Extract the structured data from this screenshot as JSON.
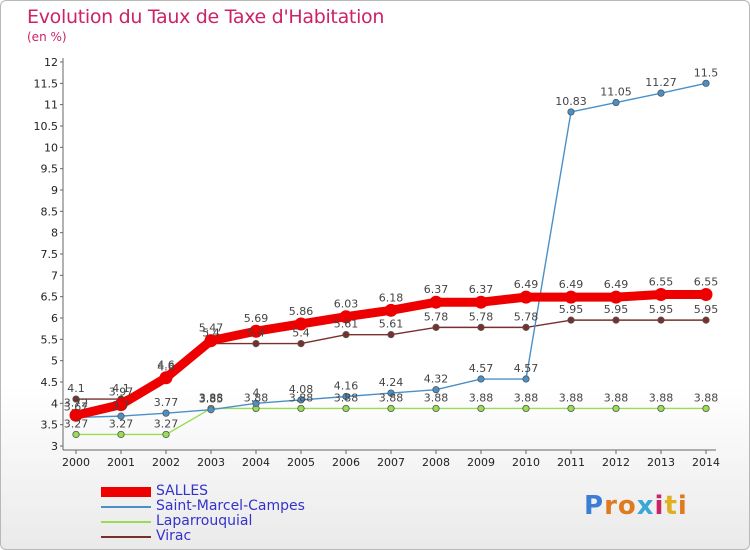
{
  "chart_data": {
    "type": "line",
    "title": "Evolution du Taux de Taxe d'Habitation",
    "ylabel": "(en %)",
    "categories": [
      "2000",
      "2001",
      "2002",
      "2003",
      "2004",
      "2005",
      "2006",
      "2007",
      "2008",
      "2009",
      "2010",
      "2011",
      "2012",
      "2013",
      "2014"
    ],
    "ylim": [
      3,
      12
    ],
    "yticks": [
      "3",
      "3.5",
      "4",
      "4.5",
      "5",
      "5.5",
      "6",
      "6.5",
      "7",
      "7.5",
      "8",
      "8.5",
      "9",
      "9.5",
      "10",
      "10.5",
      "11",
      "11.5",
      "12"
    ],
    "grid": false,
    "legend_position": "bottom-left",
    "series": [
      {
        "name": "SALLES",
        "color": "#ee0000",
        "values": [
          3.72,
          3.97,
          4.6,
          5.47,
          5.69,
          5.86,
          6.03,
          6.18,
          6.37,
          6.37,
          6.49,
          6.49,
          6.49,
          6.55,
          6.55
        ],
        "labels": [
          "3.72",
          "3.97",
          "4.6",
          "5.47",
          "5.69",
          "5.86",
          "6.03",
          "6.18",
          "6.37",
          "6.37",
          "6.49",
          "6.49",
          "6.49",
          "6.55",
          "6.55"
        ]
      },
      {
        "name": "Saint-Marcel-Campes",
        "color": "#4a90c8",
        "values": [
          3.67,
          3.7,
          3.77,
          3.85,
          4.0,
          4.08,
          4.16,
          4.24,
          4.32,
          4.57,
          4.57,
          10.83,
          11.05,
          11.27,
          11.5
        ],
        "labels": [
          "3.67",
          "3.7",
          "3.77",
          "3.85",
          "4",
          "4.08",
          "4.16",
          "4.24",
          "4.32",
          "4.57",
          "4.57",
          "10.83",
          "11.05",
          "11.27",
          "11.5"
        ]
      },
      {
        "name": "Laparrouquial",
        "color": "#99dd55",
        "values": [
          3.27,
          3.27,
          3.27,
          3.88,
          3.88,
          3.88,
          3.88,
          3.88,
          3.88,
          3.88,
          3.88,
          3.88,
          3.88,
          3.88,
          3.88
        ],
        "labels": [
          "3.27",
          "3.27",
          "3.27",
          "3.88",
          "3.88",
          "3.88",
          "3.88",
          "3.88",
          "3.88",
          "3.88",
          "3.88",
          "3.88",
          "3.88",
          "3.88",
          "3.88"
        ]
      },
      {
        "name": "Virac",
        "color": "#7a2f2f",
        "values": [
          4.1,
          4.1,
          4.6,
          5.4,
          5.4,
          5.4,
          5.61,
          5.61,
          5.78,
          5.78,
          5.78,
          5.95,
          5.95,
          5.95,
          5.95
        ],
        "labels": [
          "4.1",
          "4.1",
          "4.6",
          "5.4",
          "5.4",
          "5.4",
          "5.61",
          "5.61",
          "5.78",
          "5.78",
          "5.78",
          "5.95",
          "5.95",
          "5.95",
          "5.95"
        ]
      }
    ]
  },
  "logo": {
    "letters": [
      {
        "ch": "P",
        "color": "#3a7fd5"
      },
      {
        "ch": "r",
        "color": "#e07a1f"
      },
      {
        "ch": "o",
        "color": "#e07a1f"
      },
      {
        "ch": "x",
        "color": "#3aa7d5"
      },
      {
        "ch": "i",
        "color": "#cc2266"
      },
      {
        "ch": "t",
        "color": "#e0b020"
      },
      {
        "ch": "i",
        "color": "#e07a1f"
      }
    ]
  }
}
